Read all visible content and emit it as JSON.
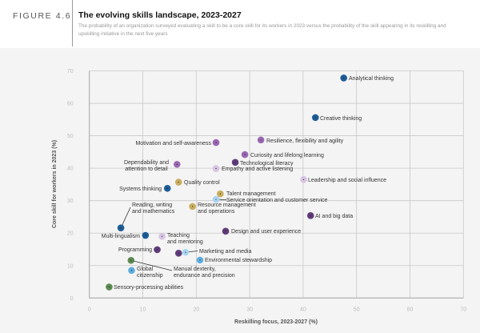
{
  "header": {
    "figure_label": "FIGURE 4.6",
    "title": "The evolving skills landscape, 2023-2027",
    "subtitle": "The probability of an organization surveyed evaluating a skill to be a core skill for its workers in 2023 versus the probability of the skill appearing in its reskilling and upskilling initiative in the next five years"
  },
  "chart_data": {
    "type": "scatter",
    "title": "The evolving skills landscape, 2023-2027",
    "xlabel": "Reskilling focus, 2023-2027 (%)",
    "ylabel": "Core skill for workers in 2023 (%)",
    "xlim": [
      0,
      70
    ],
    "ylim": [
      0,
      70
    ],
    "xticks": [
      "0",
      "10",
      "20",
      "30",
      "40",
      "50",
      "60",
      "70"
    ],
    "yticks": [
      "0",
      "10",
      "20",
      "30",
      "40",
      "50",
      "60",
      "70"
    ],
    "grid": true,
    "colors": {
      "dark_blue": "#1d5c96",
      "light_blue": "#5eaee0",
      "pale_blue": "#a9d5f0",
      "purple": "#9a68b3",
      "dark_purple": "#5f3b7a",
      "pale_purple": "#d8c4e2",
      "gold": "#c9ad5e",
      "green": "#5b8a50"
    },
    "points": [
      {
        "label": "Analytical thinking",
        "x": 47.6,
        "y": 67.8,
        "color": "dark_blue"
      },
      {
        "label": "Creative thinking",
        "x": 42.3,
        "y": 55.6,
        "color": "dark_blue"
      },
      {
        "label": "Resilience, flexibility and agility",
        "x": 32.1,
        "y": 48.7,
        "color": "purple"
      },
      {
        "label": "Curiosity and lifelong learning",
        "x": 29.1,
        "y": 44.2,
        "color": "purple"
      },
      {
        "label": "Technological literacy",
        "x": 27.3,
        "y": 41.8,
        "color": "dark_purple"
      },
      {
        "label": "Empathy and active listening",
        "x": 23.7,
        "y": 39.9,
        "color": "pale_purple"
      },
      {
        "label": "Leadership and social influence",
        "x": 40.1,
        "y": 36.5,
        "color": "pale_purple"
      },
      {
        "label": "Motivation and self-awareness",
        "x": 23.7,
        "y": 47.9,
        "color": "purple"
      },
      {
        "label": "Dependability and attention to detail",
        "x": 16.4,
        "y": 41.2,
        "color": "purple"
      },
      {
        "label": "Quality control",
        "x": 16.7,
        "y": 35.7,
        "color": "gold"
      },
      {
        "label": "Systems thinking",
        "x": 14.6,
        "y": 33.8,
        "color": "dark_blue"
      },
      {
        "label": "Talent management",
        "x": 24.5,
        "y": 32.1,
        "color": "gold"
      },
      {
        "label": "Service orientation and customer service",
        "x": 23.7,
        "y": 30.4,
        "color": "pale_blue"
      },
      {
        "label": "Resource management and operations",
        "x": 19.3,
        "y": 28.2,
        "color": "gold"
      },
      {
        "label": "AI and big data",
        "x": 41.4,
        "y": 25.4,
        "color": "dark_purple"
      },
      {
        "label": "Reading, writing and mathematics",
        "x": 5.9,
        "y": 21.6,
        "color": "dark_blue"
      },
      {
        "label": "Multi-lingualism",
        "x": 10.5,
        "y": 19.3,
        "color": "dark_blue"
      },
      {
        "label": "Teaching and mentoring",
        "x": 13.6,
        "y": 19.0,
        "color": "pale_purple"
      },
      {
        "label": "Design and user experience",
        "x": 25.5,
        "y": 20.6,
        "color": "dark_purple"
      },
      {
        "label": "Programming",
        "x": 12.7,
        "y": 14.9,
        "color": "dark_purple"
      },
      {
        "label": "",
        "x": 16.7,
        "y": 13.8,
        "color": "dark_purple"
      },
      {
        "label": "Marketing and media",
        "x": 18.0,
        "y": 14.1,
        "color": "pale_blue"
      },
      {
        "label": "Environmental stewardship",
        "x": 20.7,
        "y": 11.7,
        "color": "light_blue"
      },
      {
        "label": "Manual dexterity, endurance and precision",
        "x": 7.8,
        "y": 11.6,
        "color": "green"
      },
      {
        "label": "Global citizenship",
        "x": 7.9,
        "y": 8.5,
        "color": "light_blue"
      },
      {
        "label": "Sensory-processing abilities",
        "x": 3.7,
        "y": 3.4,
        "color": "green"
      }
    ]
  }
}
